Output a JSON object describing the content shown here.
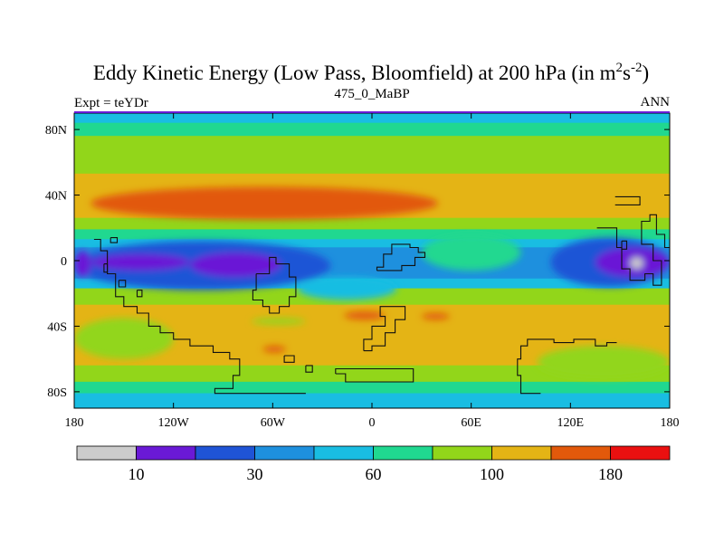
{
  "chart_data": {
    "type": "heatmap",
    "title": "Eddy Kinetic Energy (Low Pass, Bloomfield) at 200 hPa (in m",
    "title_unit_sup1": "2",
    "title_unit_mid": "s",
    "title_unit_sup2": "-2",
    "title_close": ")",
    "left_string": "Expt = teYDr",
    "center_string": "475_0_MaBP",
    "right_string": "ANN",
    "xlim": [
      -180,
      180
    ],
    "ylim": [
      -90,
      90
    ],
    "x_ticks": [
      {
        "value": -180,
        "label": "180"
      },
      {
        "value": -120,
        "label": "120W"
      },
      {
        "value": -60,
        "label": "60W"
      },
      {
        "value": 0,
        "label": "0"
      },
      {
        "value": 60,
        "label": "60E"
      },
      {
        "value": 120,
        "label": "120E"
      },
      {
        "value": 180,
        "label": "180"
      }
    ],
    "y_ticks": [
      {
        "value": 80,
        "label": "80N"
      },
      {
        "value": 40,
        "label": "40N"
      },
      {
        "value": 0,
        "label": "0"
      },
      {
        "value": -40,
        "label": "40S"
      },
      {
        "value": -80,
        "label": "80S"
      }
    ],
    "levels": [
      {
        "color": "#cccccc",
        "range": "< 10"
      },
      {
        "color": "#6a19d6",
        "range": "10-20"
      },
      {
        "color": "#1f54d6",
        "range": "20-30"
      },
      {
        "color": "#1e90de",
        "range": "30-45"
      },
      {
        "color": "#19bde2",
        "range": "45-60"
      },
      {
        "color": "#20d890",
        "range": "60-80"
      },
      {
        "color": "#92d61a",
        "range": "80-100"
      },
      {
        "color": "#e4b415",
        "range": "100-140"
      },
      {
        "color": "#e2590b",
        "range": "140-180"
      },
      {
        "color": "#ea1010",
        "range": "> 180"
      }
    ],
    "colorbar_labels": [
      {
        "after_box": 1,
        "label": "10"
      },
      {
        "after_box": 3,
        "label": "30"
      },
      {
        "after_box": 5,
        "label": "60"
      },
      {
        "after_box": 7,
        "label": "100"
      },
      {
        "after_box": 9,
        "label": "180"
      }
    ],
    "zonal_bands": [
      {
        "lat_top": 90,
        "lat_bot": 83,
        "level": 4
      },
      {
        "lat_top": 83,
        "lat_bot": 75,
        "level": 5
      },
      {
        "lat_top": 75,
        "lat_bot": 52,
        "level": 6
      },
      {
        "lat_top": 52,
        "lat_bot": 25,
        "level": 7
      },
      {
        "lat_top": 25,
        "lat_bot": 18,
        "level": 6
      },
      {
        "lat_top": 18,
        "lat_bot": 12,
        "level": 5
      },
      {
        "lat_top": 12,
        "lat_bot": 7,
        "level": 4
      },
      {
        "lat_top": 7,
        "lat_bot": -12,
        "level": 3
      },
      {
        "lat_top": -12,
        "lat_bot": -18,
        "level": 4
      },
      {
        "lat_top": -18,
        "lat_bot": -28,
        "level": 6
      },
      {
        "lat_top": -28,
        "lat_bot": -65,
        "level": 7
      },
      {
        "lat_top": -65,
        "lat_bot": -75,
        "level": 6
      },
      {
        "lat_top": -75,
        "lat_bot": -82,
        "level": 5
      },
      {
        "lat_top": -82,
        "lat_bot": -90,
        "level": 4
      }
    ],
    "anomalies": [
      {
        "name": "atlantic-green-tongue",
        "level": 5,
        "lon_min": 30,
        "lon_max": 90,
        "lat_min": -6,
        "lat_max": 16
      },
      {
        "name": "south-atlantic-light-blue",
        "level": 4,
        "lon_min": -45,
        "lon_max": 15,
        "lat_min": -24,
        "lat_max": -10
      },
      {
        "name": "north-atlantic-jet",
        "level": 8,
        "lon_min": -170,
        "lon_max": 40,
        "lat_min": 25,
        "lat_max": 45
      },
      {
        "name": "east-pacific-dark-blue",
        "level": 2,
        "lon_min": -180,
        "lon_max": -25,
        "lat_min": -18,
        "lat_max": 12
      },
      {
        "name": "west-pacific-dark-blue",
        "level": 2,
        "lon_min": 108,
        "lon_max": 180,
        "lat_min": -16,
        "lat_max": 14
      },
      {
        "name": "west-pacific-purple",
        "level": 1,
        "lon_min": 135,
        "lon_max": 180,
        "lat_min": -10,
        "lat_max": 8
      },
      {
        "name": "pacific-grey-minimum",
        "level": 0,
        "lon_min": 156,
        "lon_max": 164,
        "lat_min": -5,
        "lat_max": 2
      },
      {
        "name": "east-pacific-purple",
        "level": 1,
        "lon_min": -170,
        "lon_max": -110,
        "lat_min": -6,
        "lat_max": 4
      },
      {
        "name": "mid-ocean-purple",
        "level": 1,
        "lon_min": -110,
        "lon_max": -55,
        "lat_min": -10,
        "lat_max": 5
      },
      {
        "name": "dateline-purple",
        "level": 1,
        "lon_min": -180,
        "lon_max": -170,
        "lat_min": -10,
        "lat_max": 6
      },
      {
        "name": "south-red-patch-a",
        "level": 8,
        "lon_min": -17,
        "lon_max": 8,
        "lat_min": -36,
        "lat_max": -31
      },
      {
        "name": "south-red-patch-b",
        "level": 8,
        "lon_min": 30,
        "lon_max": 47,
        "lat_min": -36,
        "lat_max": -32
      },
      {
        "name": "south-red-patch-c",
        "level": 8,
        "lon_min": -66,
        "lon_max": -52,
        "lat_min": -56,
        "lat_max": -52
      },
      {
        "name": "south-green-bump",
        "level": 6,
        "lon_min": -73,
        "lon_max": -40,
        "lat_min": -39,
        "lat_max": -35
      },
      {
        "name": "south-green-west",
        "level": 6,
        "lon_min": -180,
        "lon_max": -120,
        "lat_min": -60,
        "lat_max": -35
      },
      {
        "name": "south-green-east",
        "level": 6,
        "lon_min": 100,
        "lon_max": 180,
        "lat_min": -72,
        "lat_max": -52
      }
    ],
    "land_outlines": [
      {
        "name": "north-america-inset",
        "points": [
          [
            147,
            39
          ],
          [
            162,
            39
          ],
          [
            162,
            34
          ],
          [
            147,
            34
          ]
        ]
      },
      {
        "name": "tropical-east-landmass",
        "points": [
          [
            136,
            20
          ],
          [
            148,
            20
          ],
          [
            148,
            8
          ],
          [
            151,
            8
          ],
          [
            151,
            -5
          ],
          [
            156,
            -5
          ],
          [
            156,
            -12
          ],
          [
            165,
            -12
          ],
          [
            165,
            -8
          ],
          [
            170,
            -8
          ],
          [
            170,
            -15
          ],
          [
            175,
            -15
          ],
          [
            175,
            0
          ],
          [
            170,
            0
          ],
          [
            170,
            10
          ],
          [
            163,
            10
          ],
          [
            163,
            24
          ],
          [
            168,
            24
          ],
          [
            168,
            28
          ],
          [
            172,
            28
          ],
          [
            172,
            16
          ],
          [
            177,
            16
          ],
          [
            177,
            8
          ],
          [
            180,
            8
          ],
          [
            180,
            14
          ]
        ]
      },
      {
        "name": "central-american-coast",
        "points": [
          [
            -168,
            13
          ],
          [
            -164,
            13
          ],
          [
            -164,
            6
          ],
          [
            -160,
            6
          ],
          [
            -160,
            -8
          ],
          [
            -155,
            -8
          ],
          [
            -155,
            -22
          ],
          [
            -150,
            -22
          ],
          [
            -150,
            -28
          ],
          [
            -142,
            -28
          ],
          [
            -142,
            -32
          ],
          [
            -135,
            -32
          ],
          [
            -135,
            -40
          ],
          [
            -128,
            -40
          ],
          [
            -128,
            -44
          ],
          [
            -120,
            -44
          ],
          [
            -120,
            -48
          ],
          [
            -110,
            -48
          ],
          [
            -110,
            -52
          ],
          [
            -96,
            -52
          ],
          [
            -96,
            -56
          ],
          [
            -86,
            -56
          ],
          [
            -86,
            -60
          ],
          [
            -80,
            -60
          ],
          [
            -80,
            -70
          ],
          [
            -84,
            -70
          ],
          [
            -84,
            -78
          ],
          [
            -95,
            -78
          ],
          [
            -95,
            -81
          ],
          [
            -40,
            -81
          ]
        ]
      },
      {
        "name": "eastern-coast-hump",
        "points": [
          [
            -70,
            -8
          ],
          [
            -62,
            -8
          ],
          [
            -62,
            2
          ],
          [
            -58,
            2
          ],
          [
            -58,
            -2
          ],
          [
            -50,
            -2
          ],
          [
            -50,
            -10
          ],
          [
            -46,
            -10
          ],
          [
            -46,
            -22
          ],
          [
            -50,
            -22
          ],
          [
            -50,
            -28
          ],
          [
            -56,
            -28
          ],
          [
            -56,
            -32
          ],
          [
            -62,
            -32
          ],
          [
            -62,
            -28
          ],
          [
            -66,
            -28
          ],
          [
            -66,
            -24
          ],
          [
            -72,
            -24
          ],
          [
            -72,
            -18
          ],
          [
            -70,
            -18
          ],
          [
            -70,
            -8
          ]
        ]
      },
      {
        "name": "atlantic-land-chunk",
        "points": [
          [
            3,
            -6
          ],
          [
            3,
            -4
          ],
          [
            7,
            -4
          ],
          [
            7,
            4
          ],
          [
            12,
            4
          ],
          [
            12,
            10
          ],
          [
            23,
            10
          ],
          [
            23,
            8
          ],
          [
            28,
            8
          ],
          [
            28,
            5
          ],
          [
            32,
            5
          ],
          [
            32,
            2
          ],
          [
            26,
            2
          ],
          [
            26,
            -3
          ],
          [
            18,
            -3
          ],
          [
            18,
            -6
          ],
          [
            3,
            -6
          ]
        ]
      },
      {
        "name": "southern-plateau",
        "points": [
          [
            -5,
            -55
          ],
          [
            -5,
            -48
          ],
          [
            0,
            -48
          ],
          [
            0,
            -40
          ],
          [
            8,
            -40
          ],
          [
            8,
            -34
          ],
          [
            5,
            -34
          ],
          [
            5,
            -28
          ],
          [
            20,
            -28
          ],
          [
            20,
            -36
          ],
          [
            14,
            -36
          ],
          [
            14,
            -44
          ],
          [
            8,
            -44
          ],
          [
            8,
            -52
          ],
          [
            0,
            -52
          ],
          [
            0,
            -55
          ],
          [
            -5,
            -55
          ]
        ]
      },
      {
        "name": "south-shelf",
        "points": [
          [
            -22,
            -69
          ],
          [
            -22,
            -66
          ],
          [
            25,
            -66
          ],
          [
            25,
            -74
          ],
          [
            -16,
            -74
          ],
          [
            -16,
            -69
          ],
          [
            -22,
            -69
          ]
        ]
      },
      {
        "name": "south-east-continent",
        "points": [
          [
            102,
            -81
          ],
          [
            90,
            -81
          ],
          [
            90,
            -70
          ],
          [
            88,
            -70
          ],
          [
            88,
            -60
          ],
          [
            90,
            -60
          ],
          [
            90,
            -52
          ],
          [
            94,
            -52
          ],
          [
            94,
            -48
          ],
          [
            110,
            -48
          ],
          [
            110,
            -50
          ],
          [
            122,
            -50
          ],
          [
            122,
            -48
          ],
          [
            135,
            -48
          ],
          [
            135,
            -52
          ],
          [
            142,
            -52
          ],
          [
            142,
            -50
          ],
          [
            148,
            -50
          ]
        ]
      },
      {
        "name": "small-island-a",
        "points": [
          [
            -162,
            -2
          ],
          [
            -160,
            -2
          ],
          [
            -160,
            -7
          ],
          [
            -162,
            -7
          ],
          [
            -162,
            -2
          ]
        ]
      },
      {
        "name": "small-island-b",
        "points": [
          [
            -153,
            -12
          ],
          [
            -149,
            -12
          ],
          [
            -149,
            -16
          ],
          [
            -153,
            -16
          ],
          [
            -153,
            -12
          ]
        ]
      },
      {
        "name": "small-island-c",
        "points": [
          [
            -142,
            -18
          ],
          [
            -139,
            -18
          ],
          [
            -139,
            -22
          ],
          [
            -142,
            -22
          ],
          [
            -142,
            -18
          ]
        ]
      },
      {
        "name": "small-island-d",
        "points": [
          [
            -53,
            -58
          ],
          [
            -47,
            -58
          ],
          [
            -47,
            -62
          ],
          [
            -53,
            -62
          ],
          [
            -53,
            -58
          ]
        ]
      },
      {
        "name": "small-island-e",
        "points": [
          [
            -40,
            -64
          ],
          [
            -36,
            -64
          ],
          [
            -36,
            -68
          ],
          [
            -40,
            -68
          ],
          [
            -40,
            -64
          ]
        ]
      },
      {
        "name": "small-island-f",
        "points": [
          [
            151,
            12
          ],
          [
            154,
            12
          ],
          [
            154,
            7
          ],
          [
            151,
            7
          ],
          [
            151,
            12
          ]
        ]
      },
      {
        "name": "small-island-g",
        "points": [
          [
            -158,
            14
          ],
          [
            -154,
            14
          ],
          [
            -154,
            11
          ],
          [
            -158,
            11
          ],
          [
            -158,
            14
          ]
        ]
      }
    ]
  }
}
